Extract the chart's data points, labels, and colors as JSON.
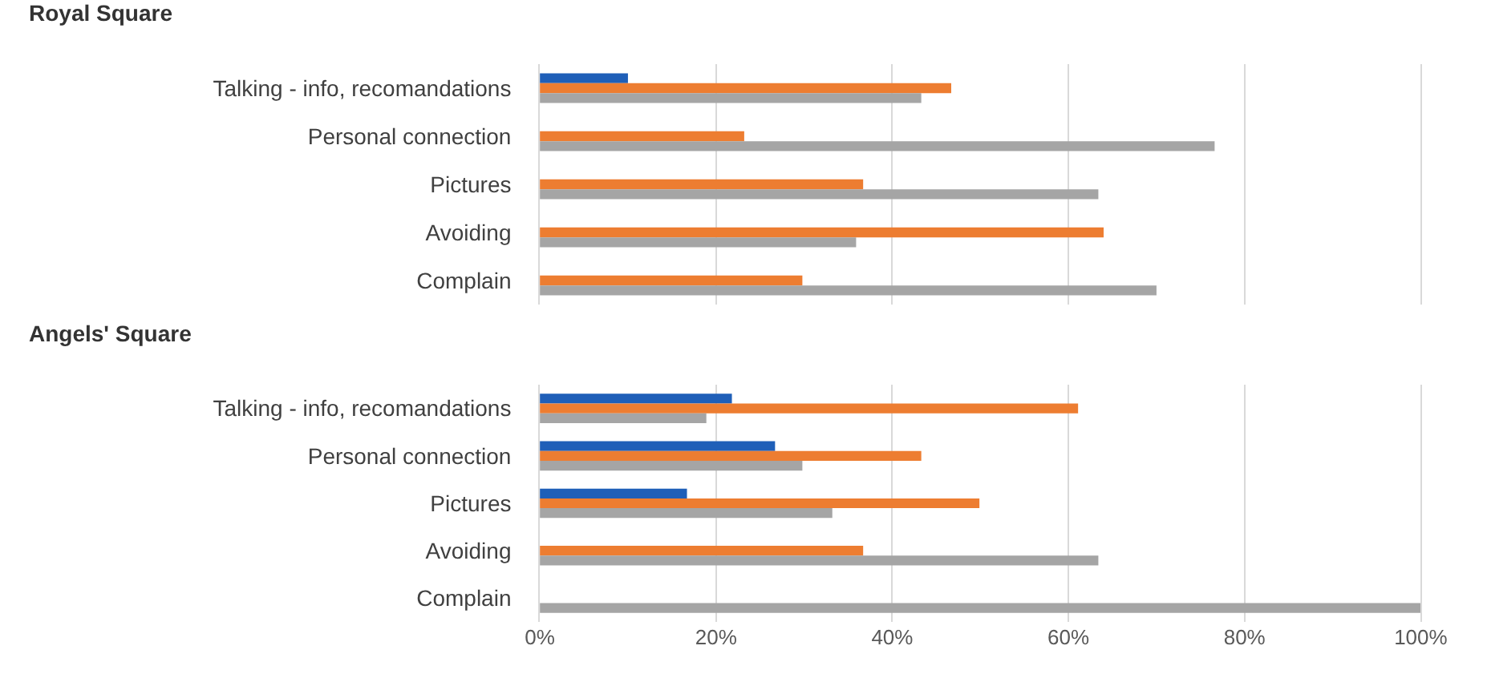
{
  "chart_data": [
    {
      "type": "bar",
      "orientation": "horizontal",
      "title": "Royal Square",
      "categories": [
        "Talking - info, recomandations",
        "Personal connection",
        "Pictures",
        "Avoiding",
        "Complain"
      ],
      "series": [
        {
          "color": "#1f5fb8",
          "values": [
            10,
            0,
            0,
            0,
            0
          ]
        },
        {
          "color": "#ed7d31",
          "values": [
            46.7,
            23.2,
            36.7,
            64,
            29.8
          ]
        },
        {
          "color": "#a5a5a5",
          "values": [
            43.3,
            76.6,
            63.4,
            35.9,
            70
          ]
        }
      ],
      "xlim": [
        0,
        100
      ],
      "xticks": [
        {
          "value": 0,
          "label": null
        },
        {
          "value": 20,
          "label": null
        },
        {
          "value": 40,
          "label": null
        },
        {
          "value": 60,
          "label": null
        },
        {
          "value": 80,
          "label": null
        },
        {
          "value": 100,
          "label": null
        }
      ],
      "grid": "x",
      "tick_labels": "y"
    },
    {
      "type": "bar",
      "orientation": "horizontal",
      "title": "Angels' Square",
      "categories": [
        "Talking - info, recomandations",
        "Personal connection",
        "Pictures",
        "Avoiding",
        "Complain"
      ],
      "series": [
        {
          "color": "#1f5fb8",
          "values": [
            21.8,
            26.7,
            16.7,
            0,
            0
          ]
        },
        {
          "color": "#ed7d31",
          "values": [
            61.1,
            43.3,
            49.9,
            36.7,
            0
          ]
        },
        {
          "color": "#a5a5a5",
          "values": [
            18.9,
            29.8,
            33.2,
            63.4,
            100
          ]
        }
      ],
      "xlim": [
        0,
        100
      ],
      "xticks": [
        {
          "value": 0,
          "label": "0%"
        },
        {
          "value": 20,
          "label": "20%"
        },
        {
          "value": 40,
          "label": "40%"
        },
        {
          "value": 60,
          "label": "60%"
        },
        {
          "value": 80,
          "label": "80%"
        },
        {
          "value": 100,
          "label": "100%"
        }
      ],
      "grid": "x"
    }
  ]
}
